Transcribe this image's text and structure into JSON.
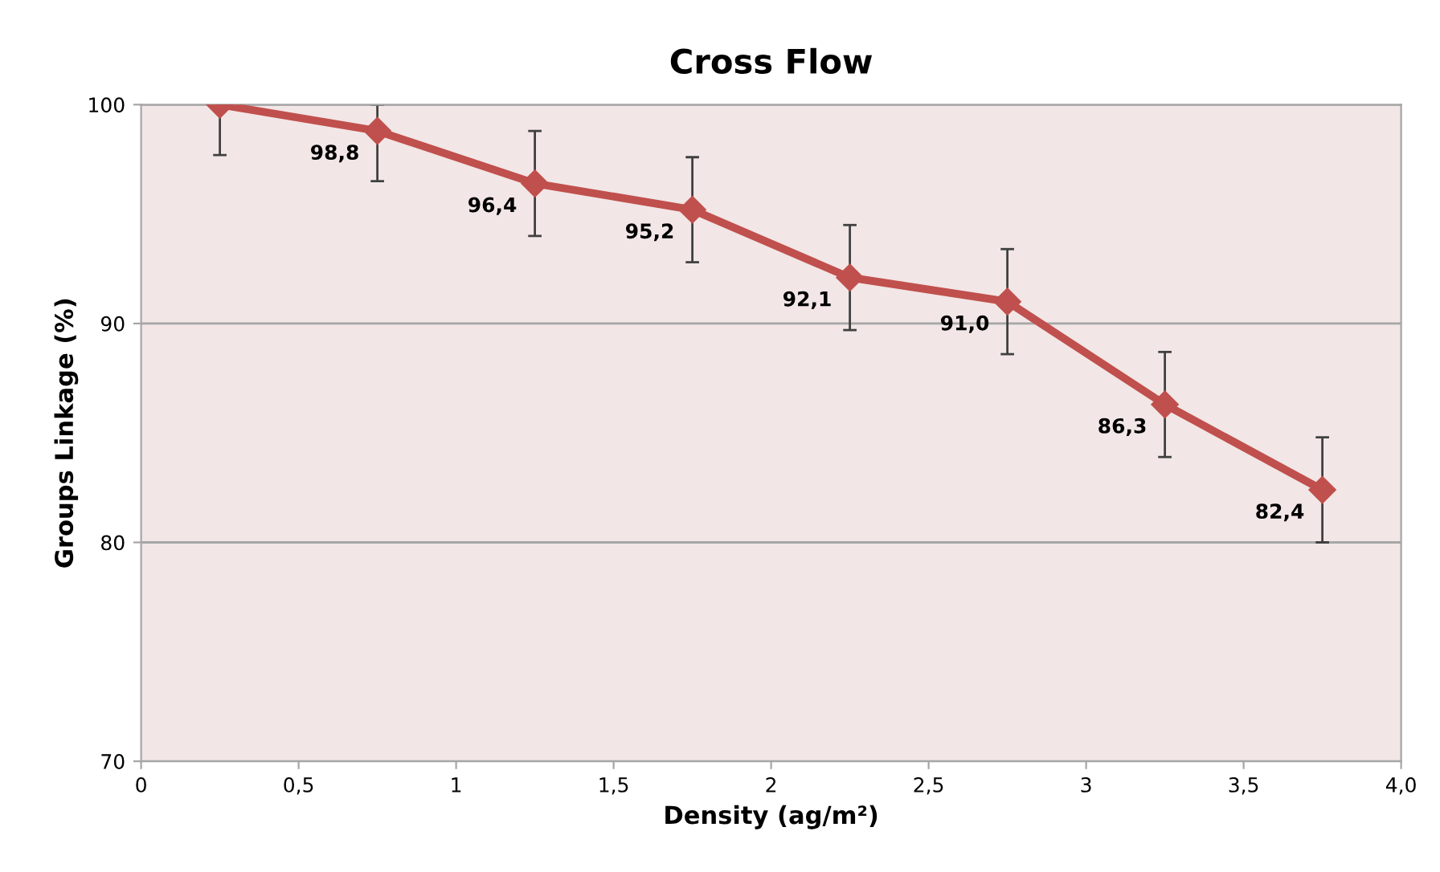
{
  "chart_data": {
    "type": "line",
    "title": "Cross Flow",
    "xlabel": "Density (ag/m²)",
    "ylabel": "Groups Linkage (%)",
    "x": [
      0.25,
      0.75,
      1.25,
      1.75,
      2.25,
      2.75,
      3.25,
      3.75
    ],
    "series": [
      {
        "color": "#c0504d",
        "values": [
          100,
          98.8,
          96.4,
          95.2,
          92.1,
          91.0,
          86.3,
          82.4
        ],
        "value_labels": [
          null,
          "98,8",
          "96,4",
          "95,2",
          "92,1",
          "91,0",
          "86,3",
          "82,4"
        ],
        "errors": [
          [
            97.7,
            100
          ],
          [
            96.5,
            100
          ],
          [
            94.0,
            98.8
          ],
          [
            92.8,
            97.6
          ],
          [
            89.7,
            94.5
          ],
          [
            88.6,
            93.4
          ],
          [
            83.9,
            88.7
          ],
          [
            80.0,
            84.8
          ]
        ]
      }
    ],
    "xlim": [
      0,
      4
    ],
    "ylim": [
      70,
      100
    ],
    "xticks": [
      0,
      {
        "value": 0.5,
        "label": "0,5"
      },
      1,
      {
        "value": 1.5,
        "label": "1,5"
      },
      2,
      {
        "value": 2.5,
        "label": "2,5"
      },
      3,
      {
        "value": 3.5,
        "label": "3,5"
      },
      {
        "value": 4,
        "label": "4,0"
      }
    ],
    "yticks": [
      70,
      80,
      90,
      100
    ],
    "grid": "y",
    "marker": "diamond",
    "line_style": "solid",
    "legend": false
  }
}
